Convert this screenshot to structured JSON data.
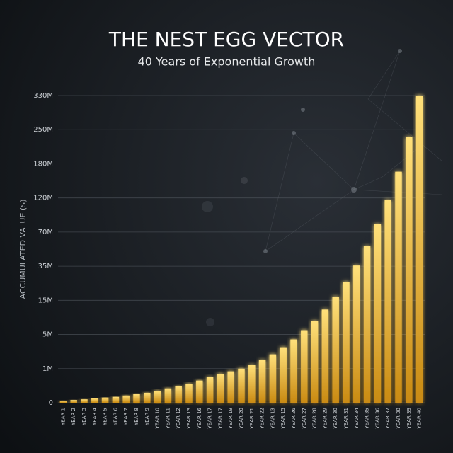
{
  "chart_data": {
    "type": "bar",
    "title": "THE NEST EGG VECTOR",
    "subtitle": "40 Years of Exponential Growth",
    "y_label": "ACCUMULATED VALUE ($)",
    "categories": [
      "YEAR 1",
      "YEAR 2",
      "YEAR 3",
      "YEAR 4",
      "YEAR 5",
      "YEAR 6",
      "YEAR 7",
      "YEAR 8",
      "YEAR 9",
      "YEAR 10",
      "YEAR 11",
      "YEAR 12",
      "YEAR 13",
      "YEAR 16",
      "YEAR 17",
      "YEAR 17",
      "YEAR 19",
      "YEAR 20",
      "YEAR 21",
      "YEAR 22",
      "YEAR 13",
      "YEAR 15",
      "YEAR 26",
      "YEAR 27",
      "YEAR 28",
      "YEAR 29",
      "YEAR 30",
      "YEAR 31",
      "YEAR 34",
      "YEAR 35",
      "YEAR 36",
      "YEAR 37",
      "YEAR 38",
      "YEAR 39",
      "YEAR 40"
    ],
    "values": [
      60000,
      80000,
      100000,
      130000,
      150000,
      170000,
      210000,
      250000,
      290000,
      350000,
      420000,
      480000,
      560000,
      650000,
      750000,
      850000,
      920000,
      1000000,
      1420000,
      2000000,
      2670000,
      3500000,
      4420000,
      6250000,
      9000000,
      12300000,
      17100000,
      25800000,
      35700000,
      55400000,
      81500000,
      117000000,
      166000000,
      235000000,
      330000000
    ],
    "color": "#f5c242",
    "ylim": [
      0,
      330000000
    ],
    "yticks": [
      0,
      {
        "value": 1000000,
        "label": "1M"
      },
      {
        "value": 5000000,
        "label": "5M"
      },
      {
        "value": 15000000,
        "label": "15M"
      },
      {
        "value": 35000000,
        "label": "35M"
      },
      {
        "value": 70000000,
        "label": "70M"
      },
      {
        "value": 120000000,
        "label": "120M"
      },
      {
        "value": 180000000,
        "label": "180M"
      },
      {
        "value": 250000000,
        "label": "250M"
      },
      {
        "value": 330000000,
        "label": "330M"
      }
    ],
    "grid": true
  }
}
